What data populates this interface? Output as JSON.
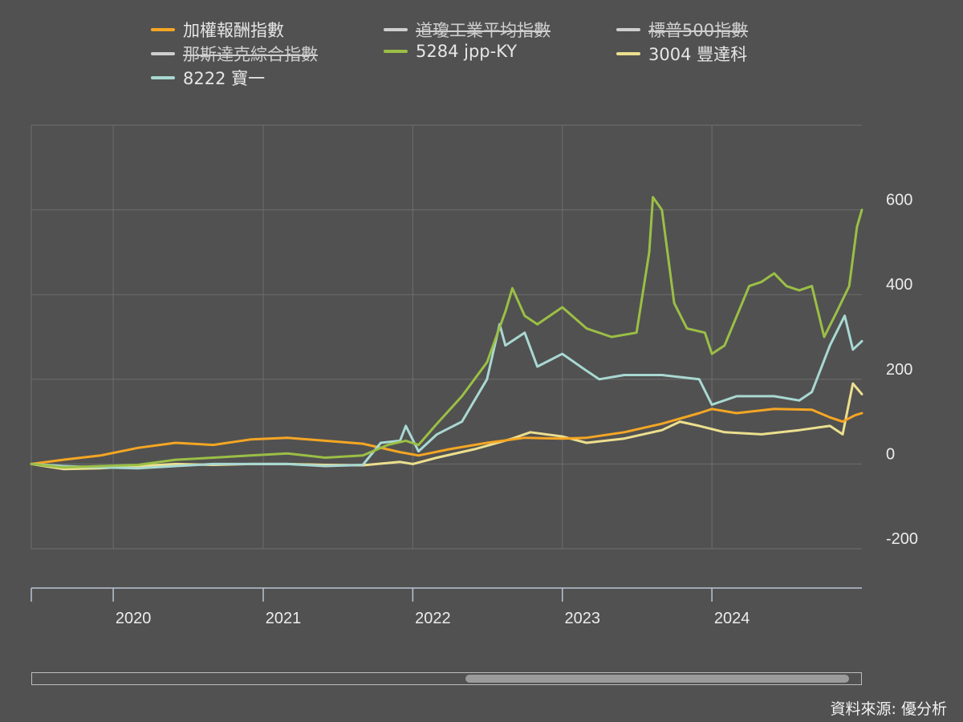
{
  "legend": [
    {
      "label": "加權報酬指數",
      "color": "#f5a623",
      "hidden": false
    },
    {
      "label": "道瓊工業平均指數",
      "color": "#cfcfcf",
      "hidden": true
    },
    {
      "label": "標普500指數",
      "color": "#cfcfcf",
      "hidden": true
    },
    {
      "label": "那斯達克綜合指數",
      "color": "#cfcfcf",
      "hidden": true
    },
    {
      "label": "5284 jpp-KY",
      "color": "#9bbf45",
      "hidden": false
    },
    {
      "label": "3004 豐達科",
      "color": "#ecdf8e",
      "hidden": false
    },
    {
      "label": "8222 寶一",
      "color": "#a9d8d2",
      "hidden": false
    }
  ],
  "source": "資料來源: 優分析",
  "chart_data": {
    "type": "line",
    "x_range": [
      "2019-06-15",
      "2025-01-01"
    ],
    "ylim": [
      -200,
      800
    ],
    "y_ticks": [
      -200,
      0,
      200,
      400,
      600
    ],
    "y_tick_labels": [
      "-200",
      "0",
      "200",
      "400",
      "600"
    ],
    "x_ticks": [
      "2020-01-01",
      "2021-01-01",
      "2022-01-01",
      "2023-01-01",
      "2024-01-01"
    ],
    "x_tick_labels": [
      "2020",
      "2021",
      "2022",
      "2023",
      "2024"
    ],
    "grid": true,
    "legend_position": "top",
    "series": [
      {
        "name": "加權報酬指數",
        "color": "#f5a623",
        "points": [
          [
            "2019-06-15",
            0
          ],
          [
            "2019-09-01",
            10
          ],
          [
            "2019-12-01",
            20
          ],
          [
            "2020-03-01",
            38
          ],
          [
            "2020-06-01",
            50
          ],
          [
            "2020-09-01",
            45
          ],
          [
            "2020-12-01",
            58
          ],
          [
            "2021-03-01",
            62
          ],
          [
            "2021-06-01",
            55
          ],
          [
            "2021-09-01",
            48
          ],
          [
            "2021-12-01",
            28
          ],
          [
            "2022-01-15",
            20
          ],
          [
            "2022-04-01",
            35
          ],
          [
            "2022-07-01",
            50
          ],
          [
            "2022-10-01",
            62
          ],
          [
            "2023-01-01",
            60
          ],
          [
            "2023-03-01",
            62
          ],
          [
            "2023-06-01",
            75
          ],
          [
            "2023-09-01",
            95
          ],
          [
            "2023-12-01",
            120
          ],
          [
            "2024-01-01",
            130
          ],
          [
            "2024-03-01",
            120
          ],
          [
            "2024-06-01",
            130
          ],
          [
            "2024-09-01",
            128
          ],
          [
            "2024-10-15",
            110
          ],
          [
            "2024-11-15",
            100
          ],
          [
            "2024-12-15",
            115
          ],
          [
            "2025-01-01",
            120
          ]
        ]
      },
      {
        "name": "5284 jpp-KY",
        "color": "#9bbf45",
        "points": [
          [
            "2019-06-15",
            0
          ],
          [
            "2019-09-01",
            -8
          ],
          [
            "2019-12-01",
            -5
          ],
          [
            "2020-03-01",
            -2
          ],
          [
            "2020-06-01",
            10
          ],
          [
            "2020-09-01",
            15
          ],
          [
            "2020-12-01",
            20
          ],
          [
            "2021-03-01",
            25
          ],
          [
            "2021-06-01",
            15
          ],
          [
            "2021-09-01",
            20
          ],
          [
            "2021-11-01",
            45
          ],
          [
            "2021-12-15",
            55
          ],
          [
            "2022-01-15",
            45
          ],
          [
            "2022-03-01",
            95
          ],
          [
            "2022-05-01",
            160
          ],
          [
            "2022-07-01",
            240
          ],
          [
            "2022-08-15",
            360
          ],
          [
            "2022-09-01",
            415
          ],
          [
            "2022-10-01",
            350
          ],
          [
            "2022-11-01",
            330
          ],
          [
            "2023-01-01",
            370
          ],
          [
            "2023-03-01",
            320
          ],
          [
            "2023-05-01",
            300
          ],
          [
            "2023-07-01",
            310
          ],
          [
            "2023-08-01",
            500
          ],
          [
            "2023-08-10",
            630
          ],
          [
            "2023-09-01",
            600
          ],
          [
            "2023-10-01",
            380
          ],
          [
            "2023-11-01",
            320
          ],
          [
            "2023-12-15",
            310
          ],
          [
            "2024-01-01",
            260
          ],
          [
            "2024-02-01",
            280
          ],
          [
            "2024-04-01",
            420
          ],
          [
            "2024-05-01",
            430
          ],
          [
            "2024-06-01",
            450
          ],
          [
            "2024-07-01",
            420
          ],
          [
            "2024-08-01",
            410
          ],
          [
            "2024-09-01",
            420
          ],
          [
            "2024-10-01",
            300
          ],
          [
            "2024-11-01",
            360
          ],
          [
            "2024-12-01",
            420
          ],
          [
            "2024-12-20",
            560
          ],
          [
            "2025-01-01",
            600
          ]
        ]
      },
      {
        "name": "3004 豐達科",
        "color": "#ecdf8e",
        "points": [
          [
            "2019-06-15",
            0
          ],
          [
            "2019-09-01",
            -12
          ],
          [
            "2019-12-01",
            -10
          ],
          [
            "2020-03-01",
            -5
          ],
          [
            "2020-06-01",
            0
          ],
          [
            "2020-09-01",
            -2
          ],
          [
            "2020-12-01",
            0
          ],
          [
            "2021-03-01",
            0
          ],
          [
            "2021-06-01",
            -2
          ],
          [
            "2021-09-01",
            -3
          ],
          [
            "2021-12-01",
            5
          ],
          [
            "2022-01-01",
            0
          ],
          [
            "2022-03-01",
            15
          ],
          [
            "2022-06-01",
            35
          ],
          [
            "2022-09-01",
            60
          ],
          [
            "2022-10-15",
            75
          ],
          [
            "2023-01-01",
            65
          ],
          [
            "2023-03-01",
            50
          ],
          [
            "2023-06-01",
            60
          ],
          [
            "2023-09-01",
            80
          ],
          [
            "2023-10-15",
            100
          ],
          [
            "2023-12-01",
            90
          ],
          [
            "2024-02-01",
            75
          ],
          [
            "2024-05-01",
            70
          ],
          [
            "2024-08-01",
            80
          ],
          [
            "2024-10-15",
            90
          ],
          [
            "2024-11-15",
            70
          ],
          [
            "2024-12-10",
            190
          ],
          [
            "2025-01-01",
            165
          ]
        ]
      },
      {
        "name": "8222 寶一",
        "color": "#a9d8d2",
        "points": [
          [
            "2019-06-15",
            0
          ],
          [
            "2019-09-01",
            -5
          ],
          [
            "2019-12-01",
            -8
          ],
          [
            "2020-03-01",
            -10
          ],
          [
            "2020-06-01",
            -5
          ],
          [
            "2020-09-01",
            0
          ],
          [
            "2020-12-01",
            0
          ],
          [
            "2021-03-01",
            0
          ],
          [
            "2021-06-01",
            -5
          ],
          [
            "2021-09-01",
            -2
          ],
          [
            "2021-10-15",
            50
          ],
          [
            "2021-12-01",
            55
          ],
          [
            "2021-12-15",
            90
          ],
          [
            "2022-01-15",
            30
          ],
          [
            "2022-03-01",
            70
          ],
          [
            "2022-05-01",
            100
          ],
          [
            "2022-07-01",
            200
          ],
          [
            "2022-08-01",
            330
          ],
          [
            "2022-08-15",
            280
          ],
          [
            "2022-10-01",
            310
          ],
          [
            "2022-11-01",
            230
          ],
          [
            "2023-01-01",
            260
          ],
          [
            "2023-03-01",
            220
          ],
          [
            "2023-04-01",
            200
          ],
          [
            "2023-06-01",
            210
          ],
          [
            "2023-09-01",
            210
          ],
          [
            "2023-12-01",
            200
          ],
          [
            "2024-01-01",
            140
          ],
          [
            "2024-03-01",
            160
          ],
          [
            "2024-06-01",
            160
          ],
          [
            "2024-08-01",
            150
          ],
          [
            "2024-09-01",
            170
          ],
          [
            "2024-10-15",
            280
          ],
          [
            "2024-11-20",
            350
          ],
          [
            "2024-12-10",
            270
          ],
          [
            "2025-01-01",
            290
          ]
        ]
      }
    ]
  }
}
